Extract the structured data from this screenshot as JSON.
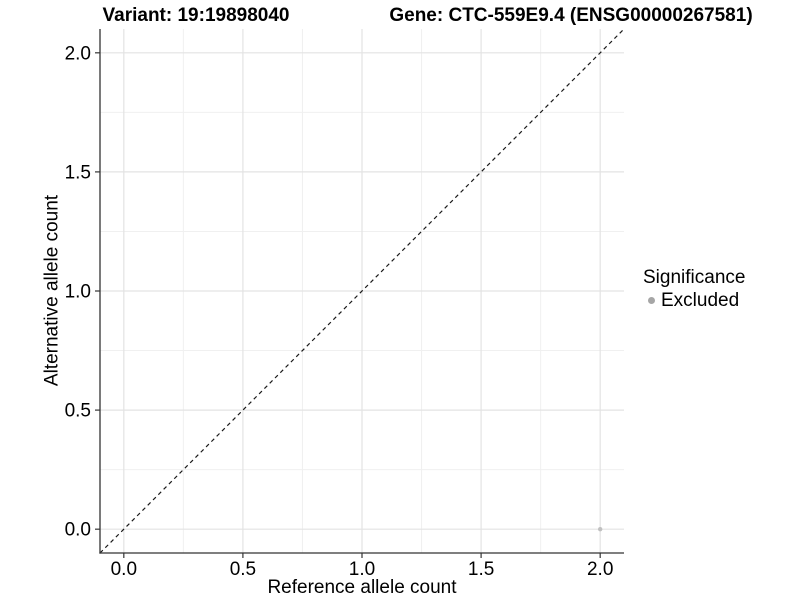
{
  "chart_data": {
    "type": "scatter",
    "titles": {
      "left": "Variant: 19:19898040",
      "right": "Gene: CTC-559E9.4 (ENSG00000267581)"
    },
    "xlabel": "Reference allele count",
    "ylabel": "Alternative allele count",
    "xlim": [
      -0.1,
      2.1
    ],
    "ylim": [
      -0.1,
      2.1
    ],
    "x_ticks": [
      0.0,
      0.5,
      1.0,
      1.5,
      2.0
    ],
    "y_ticks": [
      0.0,
      0.5,
      1.0,
      1.5,
      2.0
    ],
    "tick_decimals": 1,
    "grid": {
      "major": true,
      "minor": true
    },
    "identity_line": {
      "show": true,
      "style": "dashed",
      "from": -0.1,
      "to": 2.1
    },
    "series": [
      {
        "name": "Excluded",
        "color": "#c0c0c0",
        "point_radius": 2.2,
        "points": [
          [
            2.0,
            0.0
          ]
        ]
      }
    ],
    "legend": {
      "title": "Significance",
      "position": "right",
      "entries": [
        {
          "label": "Excluded",
          "color": "#a6a6a6"
        }
      ]
    }
  },
  "colors": {
    "background": "#ffffff",
    "grid_major": "#e3e3e3",
    "grid_minor": "#f0f0f0",
    "axis_line": "#333333",
    "tick_mark": "#333333",
    "tick_label": "#000000",
    "identity_line": "#1a1a1a",
    "text": "#000000"
  }
}
